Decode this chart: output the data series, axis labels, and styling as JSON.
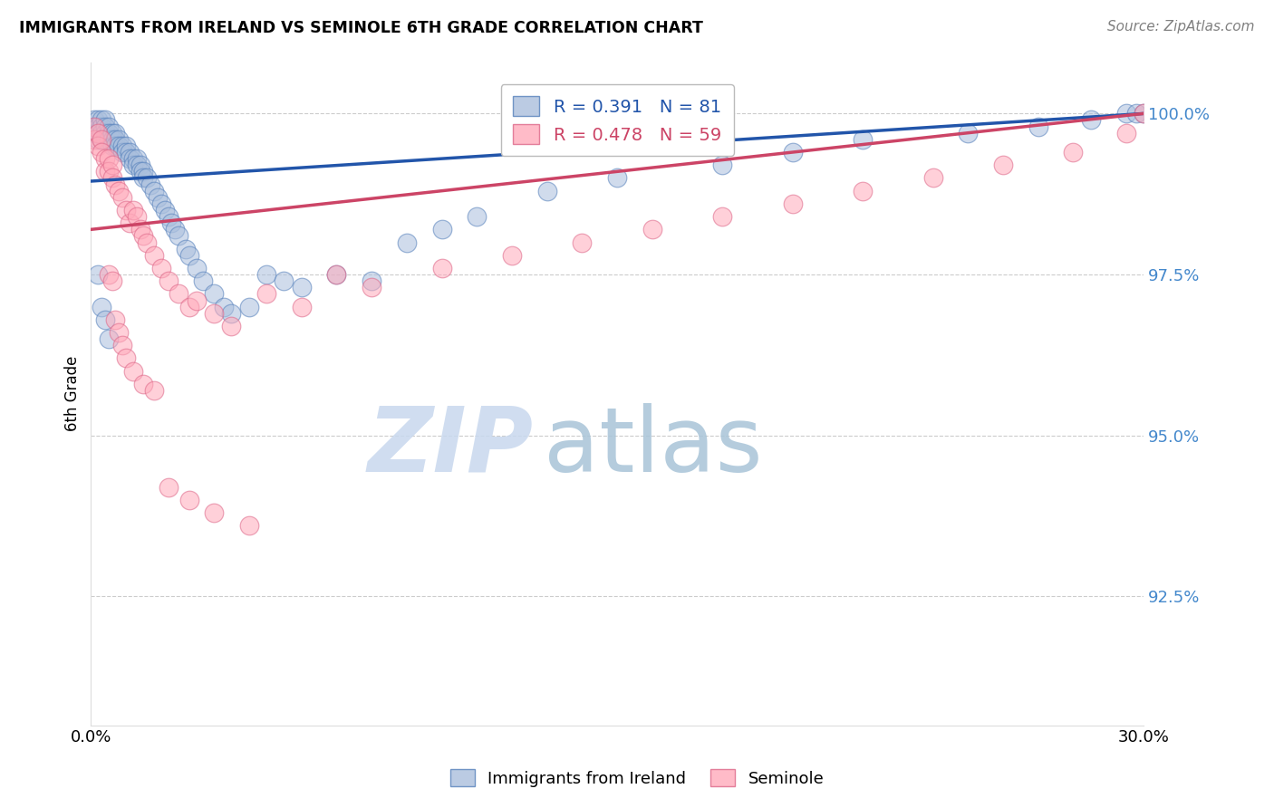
{
  "title": "IMMIGRANTS FROM IRELAND VS SEMINOLE 6TH GRADE CORRELATION CHART",
  "source": "Source: ZipAtlas.com",
  "ylabel": "6th Grade",
  "ytick_values": [
    1.0,
    0.975,
    0.95,
    0.925
  ],
  "xlim": [
    0.0,
    0.3
  ],
  "ylim": [
    0.905,
    1.008
  ],
  "legend_r1": "R = 0.391",
  "legend_n1": "N = 81",
  "legend_r2": "R = 0.478",
  "legend_n2": "N = 59",
  "blue_fill": "#AABFDD",
  "blue_edge": "#5580BB",
  "pink_fill": "#FFAABB",
  "pink_edge": "#DD6688",
  "blue_line": "#2255AA",
  "pink_line": "#CC4466",
  "grid_color": "#CCCCCC",
  "ytick_color": "#4488CC",
  "watermark_zip": "ZIP",
  "watermark_atlas": "atlas",
  "blue_x": [
    0.001,
    0.001,
    0.001,
    0.002,
    0.002,
    0.002,
    0.002,
    0.003,
    0.003,
    0.003,
    0.003,
    0.004,
    0.004,
    0.004,
    0.004,
    0.005,
    0.005,
    0.005,
    0.006,
    0.006,
    0.006,
    0.007,
    0.007,
    0.007,
    0.008,
    0.008,
    0.009,
    0.009,
    0.01,
    0.01,
    0.011,
    0.011,
    0.012,
    0.012,
    0.013,
    0.013,
    0.014,
    0.014,
    0.015,
    0.015,
    0.016,
    0.017,
    0.018,
    0.019,
    0.02,
    0.021,
    0.022,
    0.023,
    0.024,
    0.025,
    0.027,
    0.028,
    0.03,
    0.032,
    0.035,
    0.038,
    0.04,
    0.045,
    0.05,
    0.055,
    0.06,
    0.07,
    0.08,
    0.09,
    0.1,
    0.11,
    0.13,
    0.15,
    0.18,
    0.2,
    0.22,
    0.25,
    0.27,
    0.285,
    0.295,
    0.298,
    0.3,
    0.002,
    0.003,
    0.004,
    0.005
  ],
  "blue_y": [
    0.999,
    0.998,
    0.997,
    0.999,
    0.998,
    0.997,
    0.996,
    0.999,
    0.998,
    0.997,
    0.996,
    0.999,
    0.998,
    0.997,
    0.996,
    0.998,
    0.997,
    0.996,
    0.997,
    0.996,
    0.995,
    0.997,
    0.996,
    0.995,
    0.996,
    0.995,
    0.995,
    0.994,
    0.995,
    0.994,
    0.994,
    0.993,
    0.993,
    0.992,
    0.993,
    0.992,
    0.992,
    0.991,
    0.991,
    0.99,
    0.99,
    0.989,
    0.988,
    0.987,
    0.986,
    0.985,
    0.984,
    0.983,
    0.982,
    0.981,
    0.979,
    0.978,
    0.976,
    0.974,
    0.972,
    0.97,
    0.969,
    0.97,
    0.975,
    0.974,
    0.973,
    0.975,
    0.974,
    0.98,
    0.982,
    0.984,
    0.988,
    0.99,
    0.992,
    0.994,
    0.996,
    0.997,
    0.998,
    0.999,
    1.0,
    1.0,
    1.0,
    0.975,
    0.97,
    0.968,
    0.965
  ],
  "pink_x": [
    0.001,
    0.001,
    0.002,
    0.002,
    0.003,
    0.003,
    0.004,
    0.004,
    0.005,
    0.005,
    0.006,
    0.006,
    0.007,
    0.008,
    0.009,
    0.01,
    0.011,
    0.012,
    0.013,
    0.014,
    0.015,
    0.016,
    0.018,
    0.02,
    0.022,
    0.025,
    0.028,
    0.03,
    0.035,
    0.04,
    0.05,
    0.06,
    0.07,
    0.08,
    0.1,
    0.12,
    0.14,
    0.16,
    0.18,
    0.2,
    0.22,
    0.24,
    0.26,
    0.28,
    0.295,
    0.3,
    0.005,
    0.006,
    0.007,
    0.008,
    0.009,
    0.01,
    0.012,
    0.015,
    0.018,
    0.022,
    0.028,
    0.035,
    0.045
  ],
  "pink_y": [
    0.998,
    0.996,
    0.997,
    0.995,
    0.996,
    0.994,
    0.993,
    0.991,
    0.993,
    0.991,
    0.992,
    0.99,
    0.989,
    0.988,
    0.987,
    0.985,
    0.983,
    0.985,
    0.984,
    0.982,
    0.981,
    0.98,
    0.978,
    0.976,
    0.974,
    0.972,
    0.97,
    0.971,
    0.969,
    0.967,
    0.972,
    0.97,
    0.975,
    0.973,
    0.976,
    0.978,
    0.98,
    0.982,
    0.984,
    0.986,
    0.988,
    0.99,
    0.992,
    0.994,
    0.997,
    1.0,
    0.975,
    0.974,
    0.968,
    0.966,
    0.964,
    0.962,
    0.96,
    0.958,
    0.957,
    0.942,
    0.94,
    0.938,
    0.936
  ]
}
